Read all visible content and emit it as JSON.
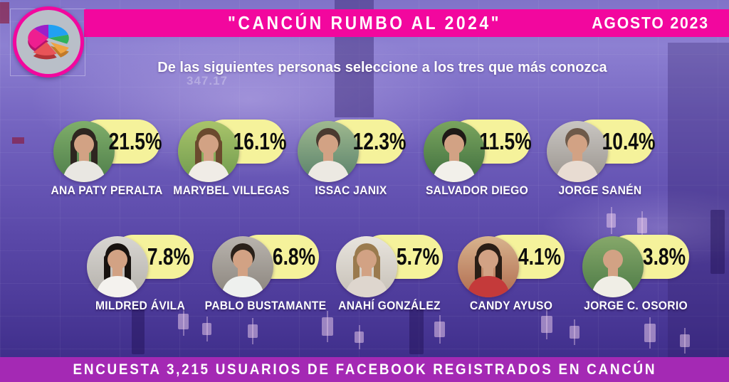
{
  "header": {
    "title": "\"CANCÚN RUMBO AL 2024\"",
    "date": "AGOSTO 2023",
    "subtitle": "De las siguientes personas seleccione a los tres que más conozca"
  },
  "logo": {
    "icon": "pie-chart-icon",
    "ring_color": "#e8188f",
    "disc_color": "#b9bfc8",
    "slice_colors": [
      "#ee1e90",
      "#9b1fc9",
      "#21a0f2",
      "#2fb25c",
      "#f0a342",
      "#e85458"
    ]
  },
  "background": {
    "ticker_number": "347.17"
  },
  "survey": {
    "people": [
      {
        "name": "ANA PATY PERALTA",
        "value": "21.5%",
        "photo": {
          "bg1": "#7fae6a",
          "bg2": "#4e7d4a",
          "hair": "#2e2620",
          "shirt": "#e9e7e2",
          "style": "long"
        }
      },
      {
        "name": "MARYBEL VILLEGAS",
        "value": "16.1%",
        "photo": {
          "bg1": "#a9c46a",
          "bg2": "#6f9a4e",
          "hair": "#6b4a2e",
          "shirt": "#f0ece6",
          "style": "long"
        }
      },
      {
        "name": "ISSAC JANIX",
        "value": "12.3%",
        "photo": {
          "bg1": "#9fb98f",
          "bg2": "#58806a",
          "hair": "#4a3a30",
          "shirt": "#ece9e2",
          "style": "short"
        }
      },
      {
        "name": "SALVADOR DIEGO",
        "value": "11.5%",
        "photo": {
          "bg1": "#7aa55e",
          "bg2": "#3f6e3f",
          "hair": "#1f1a16",
          "shirt": "#f2f0ea",
          "style": "short"
        }
      },
      {
        "name": "JORGE SANÉN",
        "value": "10.4%",
        "photo": {
          "bg1": "#c9c6c2",
          "bg2": "#9a948e",
          "hair": "#6e5a4a",
          "shirt": "#e8dcd2",
          "style": "short"
        }
      },
      {
        "name": "MILDRED ÁVILA",
        "value": "7.8%",
        "photo": {
          "bg1": "#d8d6d2",
          "bg2": "#b4b0aa",
          "hair": "#17120f",
          "shirt": "#f4f2ee",
          "style": "long"
        }
      },
      {
        "name": "PABLO BUSTAMANTE",
        "value": "6.8%",
        "photo": {
          "bg1": "#b9b4ae",
          "bg2": "#8a847c",
          "hair": "#2a211a",
          "shirt": "#eef0ee",
          "style": "short"
        }
      },
      {
        "name": "ANAHÍ GONZÁLEZ",
        "value": "5.7%",
        "photo": {
          "bg1": "#e8e4de",
          "bg2": "#c6c0b6",
          "hair": "#9a7a4e",
          "shirt": "#ded6ce",
          "style": "long"
        }
      },
      {
        "name": "CANDY AYUSO",
        "value": "4.1%",
        "photo": {
          "bg1": "#d8b48e",
          "bg2": "#b06a4e",
          "hair": "#2a1e16",
          "shirt": "#c43a3a",
          "style": "long"
        }
      },
      {
        "name": "JORGE C. OSORIO",
        "value": "3.8%",
        "photo": {
          "bg1": "#86a86a",
          "bg2": "#4c7a46",
          "hair": "#b8a48e",
          "shirt": "#f0eee6",
          "style": "bald"
        }
      }
    ],
    "skin_tone": "#d2a284"
  },
  "footer": {
    "text": "ENCUESTA 3,215 USUARIOS DE FACEBOOK REGISTRADOS EN CANCÚN"
  },
  "colors": {
    "banner_pink": "#f2079e",
    "footer_purple": "#a429b4",
    "pill_yellow": "#f5f29b",
    "percentage_text": "#0d0d0d",
    "name_text": "#ffffff"
  },
  "chart_data": {
    "type": "bar",
    "title": "\"CANCÚN RUMBO AL 2024\"",
    "subtitle": "De las siguientes personas seleccione a los tres que más conozca",
    "date_label": "AGOSTO 2023",
    "categories": [
      "ANA PATY PERALTA",
      "MARYBEL VILLEGAS",
      "ISSAC JANIX",
      "SALVADOR DIEGO",
      "JORGE SANÉN",
      "MILDRED ÁVILA",
      "PABLO BUSTAMANTE",
      "ANAHÍ GONZÁLEZ",
      "CANDY AYUSO",
      "JORGE C. OSORIO"
    ],
    "values": [
      21.5,
      16.1,
      12.3,
      11.5,
      10.4,
      7.8,
      6.8,
      5.7,
      4.1,
      3.8
    ],
    "unit": "%",
    "note": "ENCUESTA 3,215 USUARIOS DE FACEBOOK REGISTRADOS EN CANCÚN",
    "legend": false,
    "grid": false
  }
}
